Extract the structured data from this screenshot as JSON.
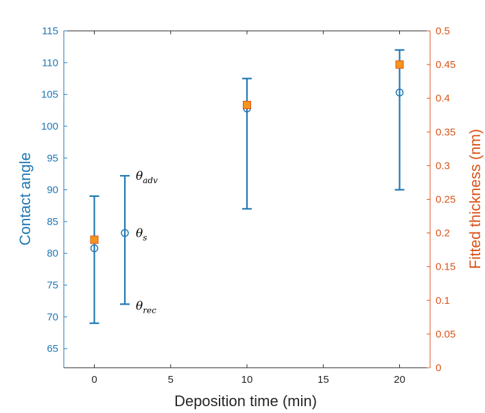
{
  "chart_data": {
    "type": "scatter",
    "xlabel": "Deposition time (min)",
    "ylabel_left": "Contact angle",
    "ylabel_right": "Fitted thickness (nm)",
    "xlim": [
      -2,
      22
    ],
    "ylim_left": [
      62,
      115
    ],
    "ylim_right": [
      0,
      0.5
    ],
    "x_ticks": [
      0,
      5,
      10,
      15,
      20
    ],
    "y_left_ticks": [
      65,
      70,
      75,
      80,
      85,
      90,
      95,
      100,
      105,
      110,
      115
    ],
    "y_right_ticks": [
      0,
      0.05,
      0.1,
      0.15,
      0.2,
      0.25,
      0.3,
      0.35,
      0.4,
      0.45,
      0.5
    ],
    "grid": false,
    "contact_angle": [
      {
        "x": 0,
        "value": 80.8,
        "low": 69,
        "high": 89
      },
      {
        "x": 10,
        "value": 102.8,
        "low": 87,
        "high": 107.5
      },
      {
        "x": 20,
        "value": 105.3,
        "low": 90,
        "high": 112
      }
    ],
    "legend_example": {
      "x": 2,
      "value": 83.2,
      "low": 72,
      "high": 92.2
    },
    "annotations": [
      {
        "base": "θ",
        "sub": "adv"
      },
      {
        "base": "θ",
        "sub": "s"
      },
      {
        "base": "θ",
        "sub": "rec"
      }
    ],
    "thickness": [
      {
        "x": 0,
        "value": 0.19
      },
      {
        "x": 10,
        "value": 0.39
      },
      {
        "x": 20,
        "value": 0.45
      }
    ],
    "colors": {
      "left_axis": "#1f77b4",
      "right_axis": "#d95319",
      "marker_fill": "#f7941d",
      "marker_edge": "#d95319",
      "axis": "#262626"
    }
  }
}
